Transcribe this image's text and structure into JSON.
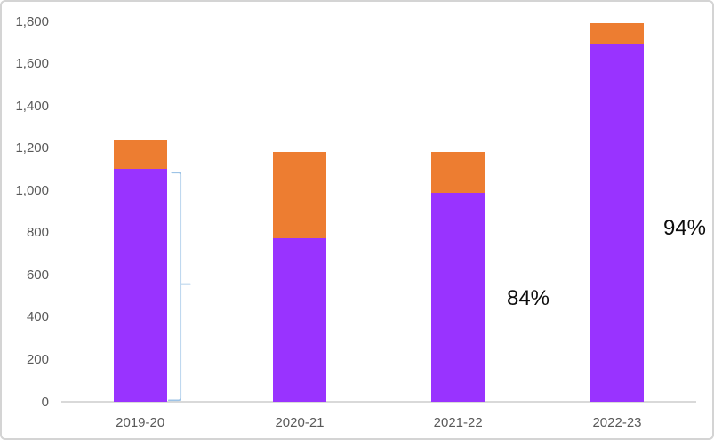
{
  "chart_data": {
    "type": "bar",
    "stacked": true,
    "title": "",
    "xlabel": "",
    "ylabel": "",
    "categories": [
      "2019-20",
      "2020-21",
      "2021-22",
      "2022-23"
    ],
    "series": [
      {
        "name": "Purple segment",
        "color": "#9933FF",
        "values": [
          1100,
          775,
          990,
          1690
        ]
      },
      {
        "name": "Orange segment",
        "color": "#ED7D31",
        "values": [
          140,
          405,
          190,
          100
        ]
      }
    ],
    "totals": [
      1240,
      1180,
      1180,
      1790
    ],
    "ylim": [
      0,
      1800
    ],
    "y_ticks": {
      "values": [
        0,
        200,
        400,
        600,
        800,
        1000,
        1200,
        1400,
        1600,
        1800
      ],
      "labels": [
        "0",
        "200",
        "400",
        "600",
        "800",
        "1,000",
        "1,200",
        "1,400",
        "1,600",
        "1,800"
      ]
    },
    "grid": false,
    "legend": "none",
    "annotations": [
      {
        "text": "84%",
        "near_category": "2021-22"
      },
      {
        "text": "94%",
        "near_category": "2022-23"
      }
    ],
    "brace": {
      "color": "#9DC3E6",
      "description": "vertical bracket spanning the purple segment of the 2019-20 bar (0 to ~1,100) with a middle tick pointing right"
    }
  },
  "styles": {
    "background": "#FFFFFF",
    "frame_border_color": "#D4D4D4",
    "axis_text_color": "#595959",
    "axis_line_color": "#D9D9D9",
    "annotation_text_color": "#0D0D0D"
  }
}
